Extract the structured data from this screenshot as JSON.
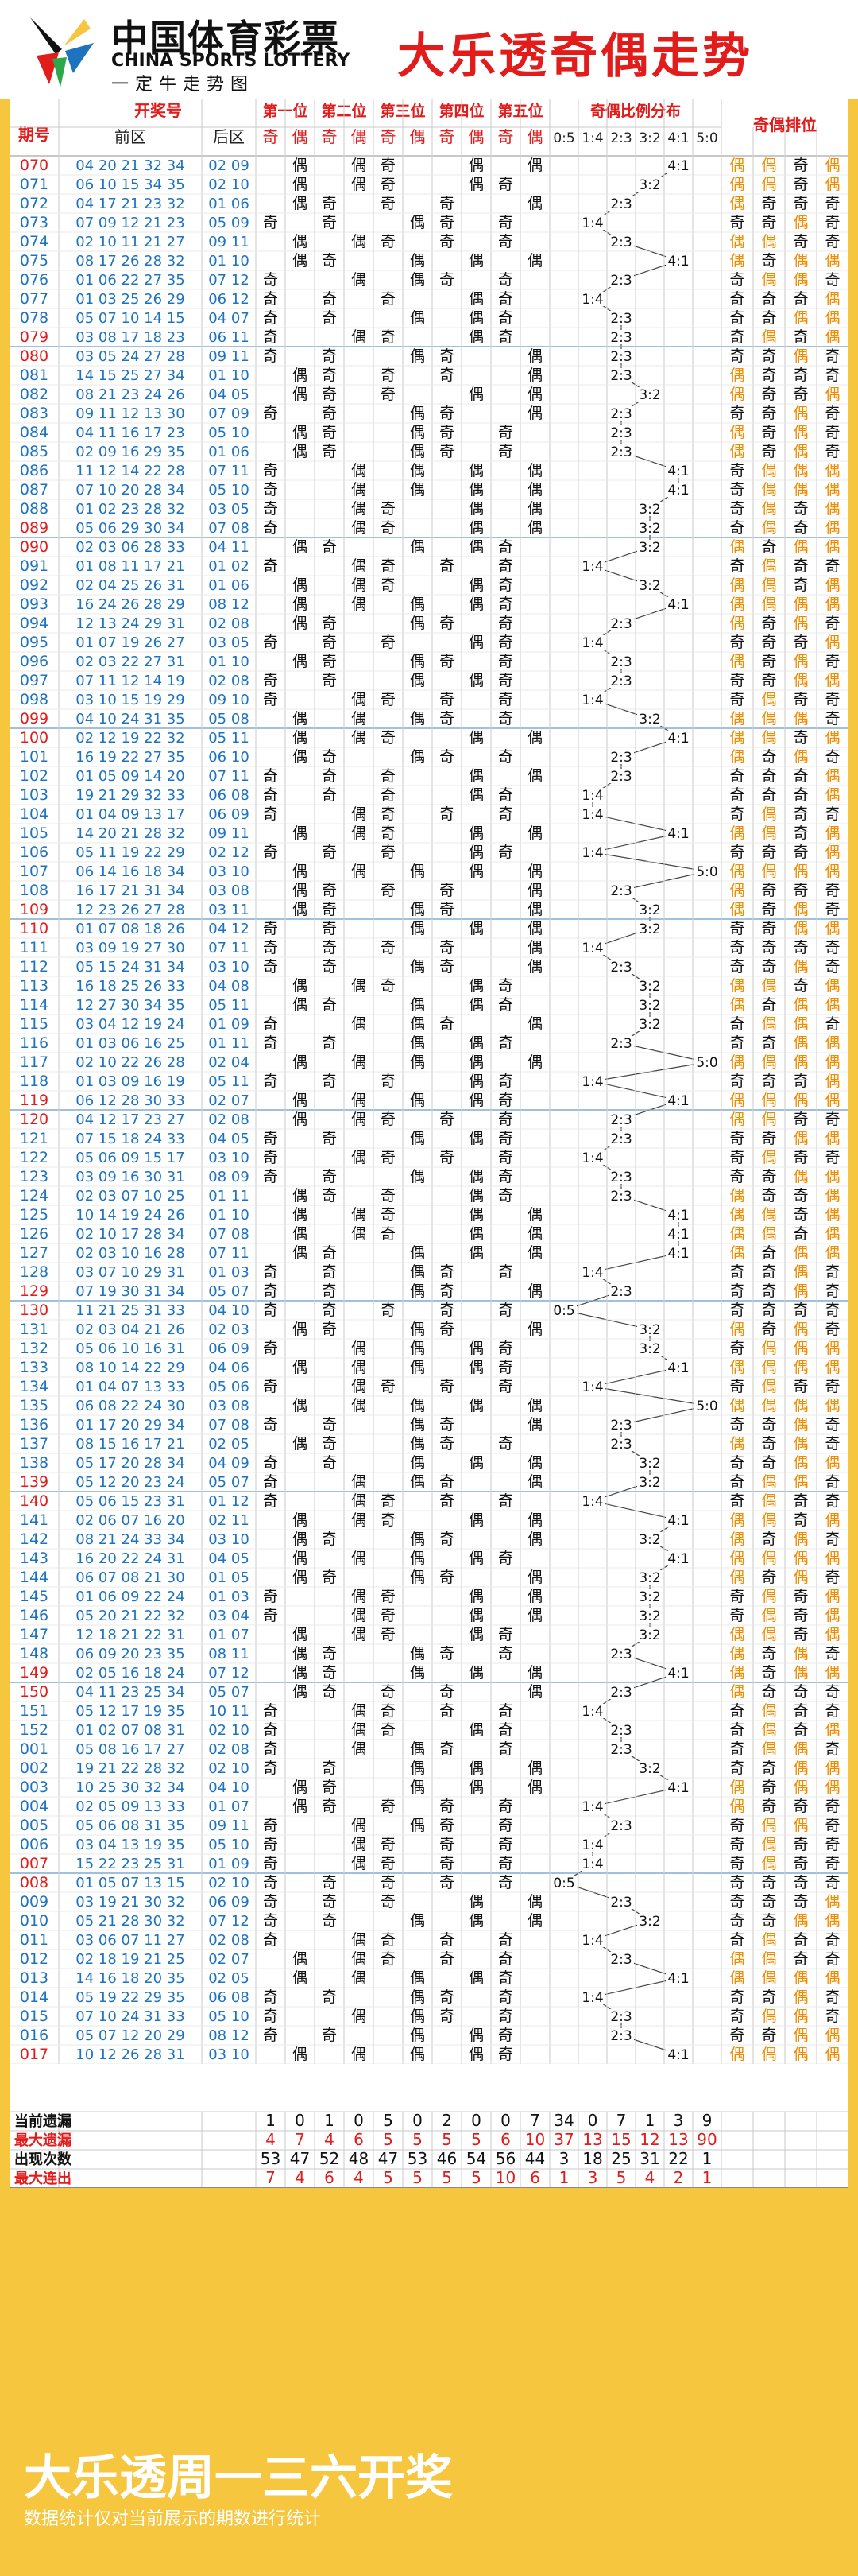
{
  "header": {
    "logo_cn": "中国体育彩票",
    "logo_en": "CHINA SPORTS LOTTERY",
    "logo_sub": "一定牛走势图",
    "title": "大乐透奇偶走势",
    "logo_icon": "lottery-star-logo"
  },
  "footer": {
    "title": "大乐透周一三六开奖",
    "note": "数据统计仅对当前展示的期数进行统计"
  },
  "colors": {
    "red": "#e21b1b",
    "blue": "#1e73be",
    "orange": "#f08c00",
    "grid": "#c9c9c9",
    "band": "#f6c63e"
  },
  "chart_data": {
    "type": "table",
    "headers": {
      "issue": "期号",
      "draw": "开奖号",
      "front": "前区",
      "back": "后区",
      "positions": [
        "第一位",
        "第二位",
        "第三位",
        "第四位",
        "第五位"
      ],
      "odd": "奇",
      "even": "偶",
      "ratio_title": "奇偶比例分布",
      "ratios": [
        "0:5",
        "1:4",
        "2:3",
        "3:2",
        "4:1",
        "5:0"
      ],
      "order_title": "奇偶排位"
    },
    "rows": [
      [
        "070",
        "04 20 21 32 34",
        "02 09"
      ],
      [
        "071",
        "06 10 15 34 35",
        "02 10"
      ],
      [
        "072",
        "04 17 21 23 32",
        "01 06"
      ],
      [
        "073",
        "07 09 12 21 23",
        "05 09"
      ],
      [
        "074",
        "02 10 11 21 27",
        "09 11"
      ],
      [
        "075",
        "08 17 26 28 32",
        "01 10"
      ],
      [
        "076",
        "01 06 22 27 35",
        "07 12"
      ],
      [
        "077",
        "01 03 25 26 29",
        "06 12"
      ],
      [
        "078",
        "05 07 10 14 15",
        "04 07"
      ],
      [
        "079",
        "03 08 17 18 23",
        "06 11"
      ],
      [
        "080",
        "03 05 24 27 28",
        "09 11"
      ],
      [
        "081",
        "14 15 25 27 34",
        "01 10"
      ],
      [
        "082",
        "08 21 23 24 26",
        "04 05"
      ],
      [
        "083",
        "09 11 12 13 30",
        "07 09"
      ],
      [
        "084",
        "04 11 16 17 23",
        "05 10"
      ],
      [
        "085",
        "02 09 16 29 35",
        "01 06"
      ],
      [
        "086",
        "11 12 14 22 28",
        "07 11"
      ],
      [
        "087",
        "07 10 20 28 34",
        "05 10"
      ],
      [
        "088",
        "01 02 23 28 32",
        "03 05"
      ],
      [
        "089",
        "05 06 29 30 34",
        "07 08"
      ],
      [
        "090",
        "02 03 06 28 33",
        "04 11"
      ],
      [
        "091",
        "01 08 11 17 21",
        "01 02"
      ],
      [
        "092",
        "02 04 25 26 31",
        "01 06"
      ],
      [
        "093",
        "16 24 26 28 29",
        "08 12"
      ],
      [
        "094",
        "12 13 24 29 31",
        "02 08"
      ],
      [
        "095",
        "01 07 19 26 27",
        "03 05"
      ],
      [
        "096",
        "02 03 22 27 31",
        "01 10"
      ],
      [
        "097",
        "07 11 12 14 19",
        "02 08"
      ],
      [
        "098",
        "03 10 15 19 29",
        "09 10"
      ],
      [
        "099",
        "04 10 24 31 35",
        "05 08"
      ],
      [
        "100",
        "02 12 19 22 32",
        "05 11"
      ],
      [
        "101",
        "16 19 22 27 35",
        "06 10"
      ],
      [
        "102",
        "01 05 09 14 20",
        "07 11"
      ],
      [
        "103",
        "19 21 29 32 33",
        "06 08"
      ],
      [
        "104",
        "01 04 09 13 17",
        "06 09"
      ],
      [
        "105",
        "14 20 21 28 32",
        "09 11"
      ],
      [
        "106",
        "05 11 19 22 29",
        "02 12"
      ],
      [
        "107",
        "06 14 16 18 34",
        "03 10"
      ],
      [
        "108",
        "16 17 21 31 34",
        "03 08"
      ],
      [
        "109",
        "12 23 26 27 28",
        "03 11"
      ],
      [
        "110",
        "01 07 08 18 26",
        "04 12"
      ],
      [
        "111",
        "03 09 19 27 30",
        "07 11"
      ],
      [
        "112",
        "05 15 24 31 34",
        "03 10"
      ],
      [
        "113",
        "16 18 25 26 33",
        "04 08"
      ],
      [
        "114",
        "12 27 30 34 35",
        "05 11"
      ],
      [
        "115",
        "03 04 12 19 24",
        "01 09"
      ],
      [
        "116",
        "01 03 06 16 25",
        "01 11"
      ],
      [
        "117",
        "02 10 22 26 28",
        "02 04"
      ],
      [
        "118",
        "01 03 09 16 19",
        "05 11"
      ],
      [
        "119",
        "06 12 28 30 33",
        "02 07"
      ],
      [
        "120",
        "04 12 17 23 27",
        "02 08"
      ],
      [
        "121",
        "07 15 18 24 33",
        "04 05"
      ],
      [
        "122",
        "05 06 09 15 17",
        "03 10"
      ],
      [
        "123",
        "03 09 16 30 31",
        "08 09"
      ],
      [
        "124",
        "02 03 07 10 25",
        "01 11"
      ],
      [
        "125",
        "10 14 19 24 26",
        "01 10"
      ],
      [
        "126",
        "02 10 17 28 34",
        "07 08"
      ],
      [
        "127",
        "02 03 10 16 28",
        "07 11"
      ],
      [
        "128",
        "03 07 10 29 31",
        "01 03"
      ],
      [
        "129",
        "07 19 30 31 34",
        "05 07"
      ],
      [
        "130",
        "11 21 25 31 33",
        "04 10"
      ],
      [
        "131",
        "02 03 04 21 26",
        "02 03"
      ],
      [
        "132",
        "05 06 10 16 31",
        "06 09"
      ],
      [
        "133",
        "08 10 14 22 29",
        "04 06"
      ],
      [
        "134",
        "01 04 07 13 33",
        "05 06"
      ],
      [
        "135",
        "06 08 22 24 30",
        "03 08"
      ],
      [
        "136",
        "01 17 20 29 34",
        "07 08"
      ],
      [
        "137",
        "08 15 16 17 21",
        "02 05"
      ],
      [
        "138",
        "05 17 20 28 34",
        "04 09"
      ],
      [
        "139",
        "05 12 20 23 24",
        "05 07"
      ],
      [
        "140",
        "05 06 15 23 31",
        "01 12"
      ],
      [
        "141",
        "02 06 07 16 20",
        "02 11"
      ],
      [
        "142",
        "08 21 24 33 34",
        "03 10"
      ],
      [
        "143",
        "16 20 22 24 31",
        "04 05"
      ],
      [
        "144",
        "06 07 08 21 30",
        "01 05"
      ],
      [
        "145",
        "01 06 09 22 24",
        "01 03"
      ],
      [
        "146",
        "05 20 21 22 32",
        "03 04"
      ],
      [
        "147",
        "12 18 21 22 31",
        "01 07"
      ],
      [
        "148",
        "06 09 20 23 35",
        "08 11"
      ],
      [
        "149",
        "02 05 16 18 24",
        "07 12"
      ],
      [
        "150",
        "04 11 23 25 34",
        "05 07"
      ],
      [
        "151",
        "05 12 17 19 35",
        "10 11"
      ],
      [
        "152",
        "01 02 07 08 31",
        "02 10"
      ],
      [
        "001",
        "05 08 16 17 27",
        "02 08"
      ],
      [
        "002",
        "19 21 22 28 32",
        "02 10"
      ],
      [
        "003",
        "10 25 30 32 34",
        "04 10"
      ],
      [
        "004",
        "02 05 09 13 33",
        "01 07"
      ],
      [
        "005",
        "05 06 08 31 35",
        "09 11"
      ],
      [
        "006",
        "03 04 13 19 35",
        "05 10"
      ],
      [
        "007",
        "15 22 23 25 31",
        "01 09"
      ],
      [
        "008",
        "01 05 07 13 15",
        "02 10"
      ],
      [
        "009",
        "03 19 21 30 32",
        "06 09"
      ],
      [
        "010",
        "05 21 28 30 32",
        "07 12"
      ],
      [
        "011",
        "03 06 07 11 27",
        "02 08"
      ],
      [
        "012",
        "02 18 19 21 25",
        "02 07"
      ],
      [
        "013",
        "14 16 18 20 35",
        "02 05"
      ],
      [
        "014",
        "05 19 22 29 35",
        "06 08"
      ],
      [
        "015",
        "07 10 24 31 33",
        "05 10"
      ],
      [
        "016",
        "05 07 12 20 29",
        "08 12"
      ],
      [
        "017",
        "10 12 26 28 31",
        "03 10"
      ]
    ],
    "stats": [
      {
        "label": "当前遗漏",
        "values": [
          1,
          0,
          1,
          0,
          5,
          0,
          2,
          0,
          0,
          7,
          34,
          0,
          7,
          1,
          3,
          9
        ]
      },
      {
        "label": "最大遗漏",
        "values": [
          4,
          7,
          4,
          6,
          5,
          5,
          5,
          5,
          6,
          10,
          37,
          13,
          15,
          12,
          13,
          90
        ]
      },
      {
        "label": "出现次数",
        "values": [
          53,
          47,
          52,
          48,
          47,
          53,
          46,
          54,
          56,
          44,
          3,
          18,
          25,
          31,
          22,
          1
        ]
      },
      {
        "label": "最大连出",
        "values": [
          7,
          4,
          6,
          4,
          5,
          5,
          5,
          5,
          10,
          6,
          1,
          3,
          5,
          4,
          2,
          1
        ]
      }
    ]
  }
}
